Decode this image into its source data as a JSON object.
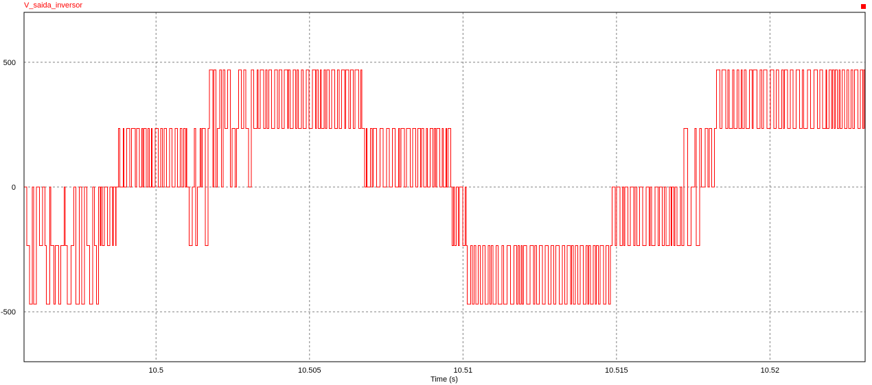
{
  "chart_data": {
    "type": "line",
    "xlabel": "Time (s)",
    "ylabel": "",
    "xlim": [
      10.4957,
      10.5231
    ],
    "ylim": [
      -700,
      700
    ],
    "x_ticks": [
      {
        "value": 10.5,
        "label": "10.5"
      },
      {
        "value": 10.505,
        "label": "10.505"
      },
      {
        "value": 10.51,
        "label": "10.51"
      },
      {
        "value": 10.515,
        "label": "10.515"
      },
      {
        "value": 10.52,
        "label": "10.52"
      }
    ],
    "y_ticks": [
      {
        "value": 500,
        "label": "500"
      },
      {
        "value": 0,
        "label": "0"
      },
      {
        "value": -500,
        "label": "-500"
      }
    ],
    "grid": true,
    "legend": "top-left",
    "series": [
      {
        "name": "V_saida_inversor",
        "color": "#ff0000",
        "levels": [
          -470,
          -235,
          0,
          235,
          470
        ],
        "segments": [
          {
            "t0": 10.4957,
            "t1": 10.4982,
            "levels": [
              0,
              -235,
              -470
            ]
          },
          {
            "t0": 10.4982,
            "t1": 10.4987,
            "levels": [
              0,
              -235
            ]
          },
          {
            "t0": 10.4987,
            "t1": 10.501,
            "levels": [
              0,
              235
            ]
          },
          {
            "t0": 10.501,
            "t1": 10.5016,
            "levels": [
              0,
              235,
              -235
            ]
          },
          {
            "t0": 10.5016,
            "t1": 10.5031,
            "levels": [
              0,
              235,
              470
            ]
          },
          {
            "t0": 10.5031,
            "t1": 10.5067,
            "levels": [
              235,
              470
            ]
          },
          {
            "t0": 10.5067,
            "t1": 10.5096,
            "levels": [
              0,
              235
            ]
          },
          {
            "t0": 10.5096,
            "t1": 10.5101,
            "levels": [
              0,
              -235
            ]
          },
          {
            "t0": 10.5101,
            "t1": 10.5148,
            "levels": [
              -235,
              -470
            ]
          },
          {
            "t0": 10.5148,
            "t1": 10.5168,
            "levels": [
              0,
              -235
            ]
          },
          {
            "t0": 10.5168,
            "t1": 10.5176,
            "levels": [
              0,
              235,
              -235
            ]
          },
          {
            "t0": 10.5176,
            "t1": 10.5181,
            "levels": [
              0,
              235
            ]
          },
          {
            "t0": 10.5181,
            "t1": 10.5231,
            "levels": [
              235,
              470
            ]
          }
        ]
      }
    ]
  },
  "close_marker_color": "#ff0000"
}
